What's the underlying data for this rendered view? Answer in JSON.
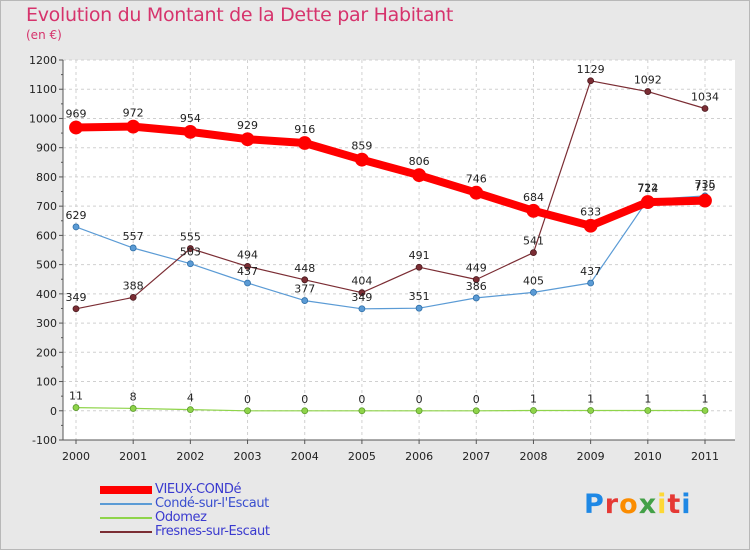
{
  "header": {
    "title": "Evolution du Montant de la Dette par Habitant",
    "subtitle": "(en €)"
  },
  "logo": {
    "text": "Proxiti",
    "colors": [
      "#1e88e5",
      "#e53935",
      "#fb8c00",
      "#43a047",
      "#fdd835",
      "#e53935",
      "#1e88e5"
    ]
  },
  "chart_data": {
    "type": "line",
    "x": [
      "2000",
      "2001",
      "2002",
      "2003",
      "2004",
      "2005",
      "2006",
      "2007",
      "2008",
      "2009",
      "2010",
      "2011"
    ],
    "yticks": [
      "-100",
      "0",
      "100",
      "200",
      "300",
      "400",
      "500",
      "600",
      "700",
      "800",
      "900",
      "1000",
      "1100",
      "1200"
    ],
    "ylim": [
      -100,
      1200
    ],
    "grid": true,
    "legend": "bottom-left",
    "series": [
      {
        "name": "VIEUX-CONDé",
        "color": "#ff0000",
        "values": [
          969,
          972,
          954,
          929,
          916,
          859,
          806,
          746,
          684,
          633,
          714,
          719
        ],
        "labels": [
          "969",
          "972",
          "954",
          "929",
          "916",
          "859",
          "806",
          "746",
          "684",
          "633",
          "714",
          "719"
        ]
      },
      {
        "name": "Condé-sur-l'Escaut",
        "color": "#5b9bd5",
        "values": [
          629,
          557,
          503,
          437,
          377,
          349,
          351,
          386,
          405,
          437,
          722,
          735
        ],
        "labels": [
          "629",
          "557",
          "503",
          "437",
          "377",
          "349",
          "351",
          "386",
          "405",
          "437",
          "722",
          "735"
        ]
      },
      {
        "name": "Odomez",
        "color": "#8fd44a",
        "values": [
          11,
          8,
          4,
          0,
          0,
          0,
          0,
          0,
          1,
          1,
          1,
          1
        ],
        "labels": [
          "11",
          "8",
          "4",
          "0",
          "0",
          "0",
          "0",
          "0",
          "1",
          "1",
          "1",
          "1"
        ]
      },
      {
        "name": "Fresnes-sur-Escaut",
        "color": "#7b2d34",
        "values": [
          349,
          388,
          555,
          494,
          448,
          404,
          491,
          449,
          541,
          1129,
          1092,
          1034
        ],
        "labels": [
          "349",
          "388",
          "555",
          "494",
          "448",
          "404",
          "491",
          "449",
          "541",
          "1129",
          "1092",
          "1034"
        ]
      }
    ]
  }
}
